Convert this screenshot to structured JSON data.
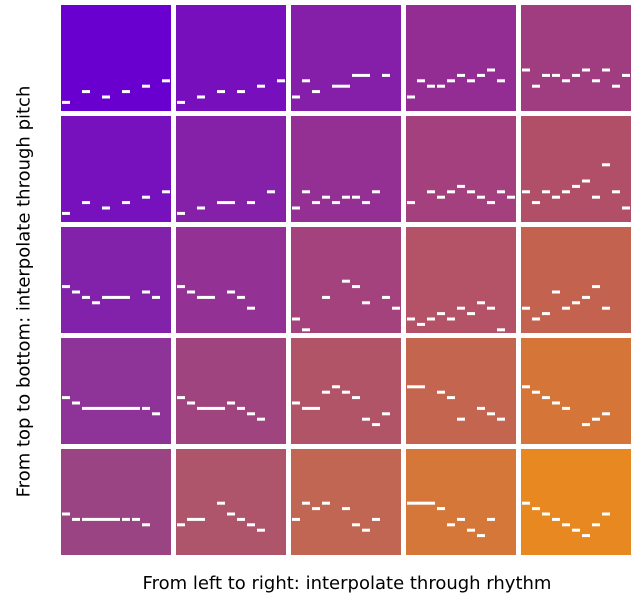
{
  "axes": {
    "y_label": "From top to bottom: interpolate through pitch",
    "x_label": "From left to right: interpolate through rhythm"
  },
  "colors": {
    "top_left": "#6a00d0",
    "top_right": "#a03c80",
    "bottom_left": "#9a4484",
    "bottom_right": "#e88820",
    "note": "#ffffff"
  },
  "grid": {
    "rows": 5,
    "cols": 5
  },
  "chart_data": {
    "type": "grid",
    "rows": [
      [
        [
          [
            0,
            9,
            1
          ],
          [
            2,
            7,
            1
          ],
          [
            4,
            8,
            1
          ],
          [
            6,
            7,
            1
          ],
          [
            8,
            6,
            1
          ],
          [
            10,
            5,
            1
          ]
        ],
        [
          [
            0,
            9,
            1
          ],
          [
            2,
            8,
            1
          ],
          [
            4,
            7,
            1
          ],
          [
            6,
            7,
            1
          ],
          [
            8,
            6,
            1
          ],
          [
            10,
            5,
            1
          ]
        ],
        [
          [
            0,
            8,
            1
          ],
          [
            1,
            5,
            1
          ],
          [
            2,
            7,
            1
          ],
          [
            4,
            6,
            2
          ],
          [
            6,
            4,
            2
          ],
          [
            9,
            4,
            1
          ]
        ],
        [
          [
            0,
            8,
            1
          ],
          [
            1,
            5,
            1
          ],
          [
            2,
            6,
            1
          ],
          [
            3,
            6,
            1
          ],
          [
            4,
            5,
            1
          ],
          [
            5,
            4,
            1
          ],
          [
            6,
            5,
            1
          ],
          [
            7,
            4,
            1
          ],
          [
            8,
            3,
            1
          ],
          [
            9,
            5,
            1
          ]
        ],
        [
          [
            0,
            3,
            1
          ],
          [
            1,
            6,
            1
          ],
          [
            2,
            4,
            1
          ],
          [
            3,
            4,
            1
          ],
          [
            4,
            5,
            1
          ],
          [
            5,
            4,
            1
          ],
          [
            6,
            3,
            1
          ],
          [
            7,
            5,
            1
          ],
          [
            8,
            3,
            1
          ],
          [
            9,
            6,
            1
          ],
          [
            10,
            4,
            1
          ]
        ]
      ],
      [
        [
          [
            0,
            9,
            1
          ],
          [
            2,
            7,
            1
          ],
          [
            4,
            8,
            1
          ],
          [
            6,
            7,
            1
          ],
          [
            8,
            6,
            1
          ],
          [
            10,
            5,
            1
          ]
        ],
        [
          [
            0,
            9,
            1
          ],
          [
            2,
            8,
            1
          ],
          [
            4,
            7,
            2
          ],
          [
            7,
            7,
            1
          ],
          [
            9,
            5,
            1
          ]
        ],
        [
          [
            0,
            8,
            1
          ],
          [
            1,
            5,
            1
          ],
          [
            2,
            7,
            1
          ],
          [
            3,
            6,
            1
          ],
          [
            4,
            7,
            1
          ],
          [
            5,
            6,
            1
          ],
          [
            6,
            6,
            1
          ],
          [
            7,
            7,
            1
          ],
          [
            8,
            5,
            1
          ]
        ],
        [
          [
            0,
            7,
            1
          ],
          [
            2,
            5,
            1
          ],
          [
            3,
            6,
            1
          ],
          [
            4,
            5,
            1
          ],
          [
            5,
            4,
            1
          ],
          [
            6,
            5,
            1
          ],
          [
            7,
            6,
            1
          ],
          [
            8,
            7,
            1
          ],
          [
            9,
            5,
            1
          ],
          [
            10,
            6,
            1
          ]
        ],
        [
          [
            0,
            5,
            1
          ],
          [
            1,
            7,
            1
          ],
          [
            2,
            5,
            1
          ],
          [
            3,
            6,
            1
          ],
          [
            4,
            5,
            1
          ],
          [
            5,
            4,
            1
          ],
          [
            6,
            3,
            1
          ],
          [
            7,
            6,
            1
          ],
          [
            8,
            0,
            1
          ],
          [
            9,
            5,
            1
          ],
          [
            10,
            8,
            1
          ]
        ]
      ],
      [
        [
          [
            0,
            2,
            1
          ],
          [
            1,
            3,
            1
          ],
          [
            2,
            4,
            1
          ],
          [
            3,
            5,
            1
          ],
          [
            4,
            4,
            3
          ],
          [
            8,
            3,
            1
          ],
          [
            9,
            4,
            1
          ]
        ],
        [
          [
            0,
            2,
            1
          ],
          [
            1,
            3,
            1
          ],
          [
            2,
            4,
            2
          ],
          [
            5,
            3,
            1
          ],
          [
            6,
            4,
            1
          ],
          [
            7,
            6,
            1
          ]
        ],
        [
          [
            0,
            8,
            1
          ],
          [
            1,
            10,
            1
          ],
          [
            3,
            4,
            1
          ],
          [
            5,
            1,
            1
          ],
          [
            6,
            2,
            1
          ],
          [
            7,
            5,
            1
          ],
          [
            9,
            4,
            1
          ],
          [
            10,
            6,
            1
          ]
        ],
        [
          [
            0,
            8,
            1
          ],
          [
            1,
            9,
            1
          ],
          [
            2,
            8,
            1
          ],
          [
            3,
            7,
            1
          ],
          [
            4,
            8,
            1
          ],
          [
            5,
            6,
            1
          ],
          [
            6,
            7,
            1
          ],
          [
            7,
            5,
            1
          ],
          [
            8,
            6,
            1
          ],
          [
            9,
            10,
            1
          ]
        ],
        [
          [
            0,
            6,
            1
          ],
          [
            1,
            8,
            1
          ],
          [
            2,
            7,
            1
          ],
          [
            3,
            3,
            1
          ],
          [
            4,
            6,
            1
          ],
          [
            5,
            5,
            1
          ],
          [
            6,
            4,
            1
          ],
          [
            7,
            2,
            1
          ],
          [
            8,
            6,
            1
          ]
        ]
      ],
      [
        [
          [
            0,
            2,
            1
          ],
          [
            1,
            3,
            1
          ],
          [
            2,
            4,
            6
          ],
          [
            8,
            4,
            1
          ],
          [
            9,
            5,
            1
          ]
        ],
        [
          [
            0,
            2,
            1
          ],
          [
            1,
            3,
            1
          ],
          [
            2,
            4,
            3
          ],
          [
            5,
            3,
            1
          ],
          [
            6,
            4,
            1
          ],
          [
            7,
            5,
            1
          ],
          [
            8,
            6,
            1
          ]
        ],
        [
          [
            0,
            3,
            1
          ],
          [
            1,
            4,
            2
          ],
          [
            3,
            1,
            1
          ],
          [
            4,
            0,
            1
          ],
          [
            5,
            1,
            1
          ],
          [
            6,
            2,
            1
          ],
          [
            7,
            6,
            1
          ],
          [
            8,
            7,
            1
          ],
          [
            9,
            5,
            1
          ]
        ],
        [
          [
            0,
            0,
            2
          ],
          [
            3,
            1,
            1
          ],
          [
            4,
            2,
            1
          ],
          [
            5,
            6,
            1
          ],
          [
            7,
            4,
            1
          ],
          [
            8,
            5,
            1
          ],
          [
            9,
            6,
            1
          ]
        ],
        [
          [
            0,
            0,
            1
          ],
          [
            1,
            1,
            1
          ],
          [
            2,
            2,
            1
          ],
          [
            3,
            3,
            1
          ],
          [
            4,
            4,
            1
          ],
          [
            6,
            7,
            1
          ],
          [
            7,
            6,
            1
          ],
          [
            8,
            5,
            1
          ]
        ]
      ],
      [
        [
          [
            0,
            3,
            1
          ],
          [
            1,
            4,
            1
          ],
          [
            2,
            4,
            4
          ],
          [
            6,
            4,
            1
          ],
          [
            7,
            4,
            1
          ],
          [
            8,
            5,
            1
          ]
        ],
        [
          [
            0,
            5,
            1
          ],
          [
            1,
            4,
            2
          ],
          [
            4,
            1,
            1
          ],
          [
            5,
            3,
            1
          ],
          [
            6,
            4,
            1
          ],
          [
            7,
            5,
            1
          ],
          [
            8,
            6,
            1
          ]
        ],
        [
          [
            0,
            4,
            1
          ],
          [
            1,
            1,
            1
          ],
          [
            2,
            2,
            1
          ],
          [
            3,
            1,
            1
          ],
          [
            5,
            2,
            1
          ],
          [
            6,
            5,
            1
          ],
          [
            7,
            6,
            1
          ],
          [
            8,
            4,
            1
          ]
        ],
        [
          [
            0,
            1,
            3
          ],
          [
            3,
            2,
            1
          ],
          [
            4,
            5,
            1
          ],
          [
            5,
            4,
            1
          ],
          [
            6,
            6,
            1
          ],
          [
            7,
            7,
            1
          ],
          [
            8,
            4,
            1
          ]
        ],
        [
          [
            0,
            1,
            1
          ],
          [
            1,
            2,
            1
          ],
          [
            2,
            3,
            1
          ],
          [
            3,
            4,
            1
          ],
          [
            4,
            5,
            1
          ],
          [
            5,
            6,
            1
          ],
          [
            6,
            7,
            1
          ],
          [
            7,
            5,
            1
          ],
          [
            8,
            3,
            1
          ]
        ]
      ]
    ]
  }
}
